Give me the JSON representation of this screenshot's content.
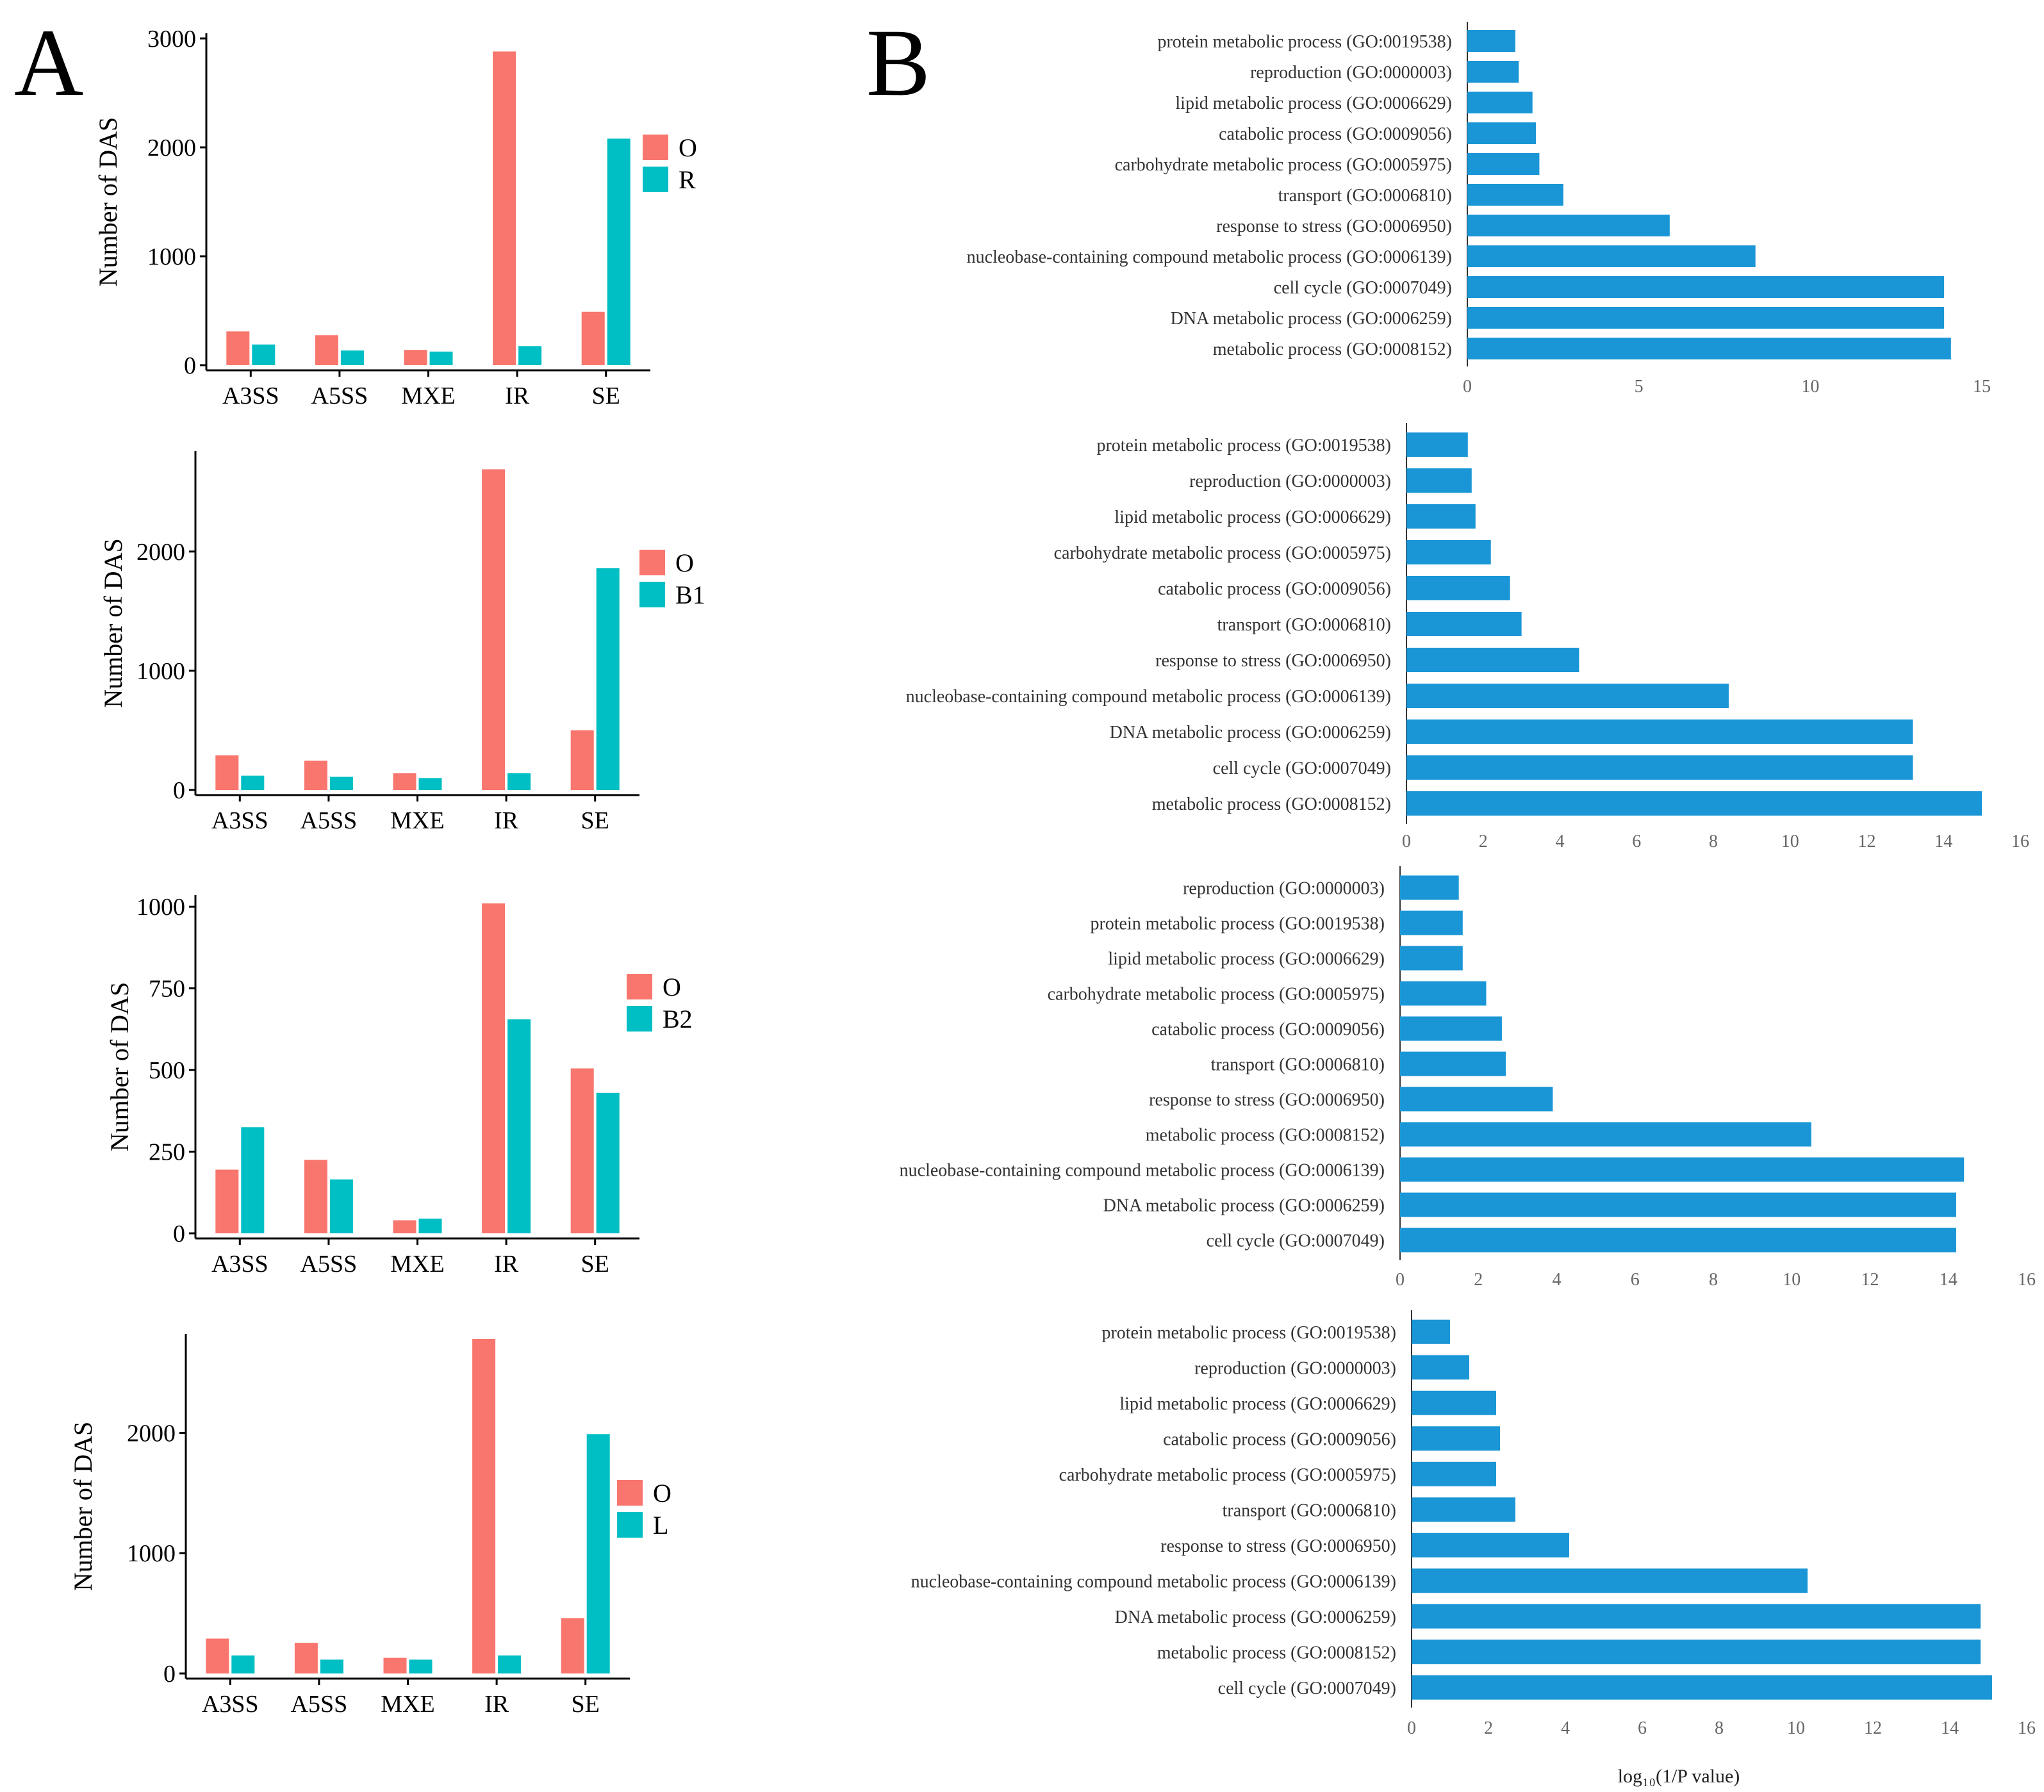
{
  "panel_labels": {
    "a": "A",
    "b": "B"
  },
  "colors": {
    "o": "#f8766d",
    "cmp": "#00bfc4",
    "go": "#1a96d6",
    "axis": "#000000"
  },
  "chart_data": [
    {
      "type": "bar",
      "panel": "A",
      "title": "",
      "xlabel": "",
      "ylabel": "Number of DAS",
      "categories": [
        "A3SS",
        "A5SS",
        "MXE",
        "IR",
        "SE"
      ],
      "series": [
        {
          "name": "O",
          "values": [
            310,
            275,
            140,
            2880,
            490
          ]
        },
        {
          "name": "R",
          "values": [
            190,
            135,
            125,
            175,
            2080
          ]
        }
      ],
      "yticks": [
        "0",
        "1000",
        "2000",
        "3000"
      ],
      "ylim": [
        0,
        3000
      ],
      "legend": "right"
    },
    {
      "type": "bar",
      "panel": "A",
      "title": "",
      "xlabel": "",
      "ylabel": "Number of DAS",
      "categories": [
        "A3SS",
        "A5SS",
        "MXE",
        "IR",
        "SE"
      ],
      "series": [
        {
          "name": "O",
          "values": [
            290,
            245,
            140,
            2690,
            500
          ]
        },
        {
          "name": "B1",
          "values": [
            120,
            110,
            100,
            140,
            1860
          ]
        }
      ],
      "yticks": [
        "0",
        "1000",
        "2000"
      ],
      "ylim": [
        0,
        2800
      ],
      "legend": "right"
    },
    {
      "type": "bar",
      "panel": "A",
      "title": "",
      "xlabel": "",
      "ylabel": "Number of DAS",
      "categories": [
        "A3SS",
        "A5SS",
        "MXE",
        "IR",
        "SE"
      ],
      "series": [
        {
          "name": "O",
          "values": [
            195,
            225,
            40,
            1010,
            505
          ]
        },
        {
          "name": "B2",
          "values": [
            325,
            165,
            45,
            655,
            430
          ]
        }
      ],
      "yticks": [
        "0",
        "250",
        "500",
        "750",
        "1000"
      ],
      "ylim": [
        0,
        1020
      ],
      "legend": "right"
    },
    {
      "type": "bar",
      "panel": "A",
      "title": "",
      "xlabel": "",
      "ylabel": "Number of DAS",
      "categories": [
        "A3SS",
        "A5SS",
        "MXE",
        "IR",
        "SE"
      ],
      "series": [
        {
          "name": "O",
          "values": [
            290,
            255,
            130,
            2780,
            460
          ]
        },
        {
          "name": "L",
          "values": [
            150,
            115,
            115,
            150,
            1990
          ]
        }
      ],
      "yticks": [
        "0",
        "1000",
        "2000"
      ],
      "ylim": [
        0,
        2780
      ],
      "legend": "right"
    },
    {
      "type": "bar",
      "orientation": "horizontal",
      "panel": "B",
      "title": "",
      "xlabel": "",
      "ylabel": "",
      "categories": [
        "protein metabolic process (GO:0019538)",
        "reproduction (GO:0000003)",
        "lipid metabolic process (GO:0006629)",
        "catabolic process (GO:0009056)",
        "carbohydrate metabolic process (GO:0005975)",
        "transport (GO:0006810)",
        "response to stress (GO:0006950)",
        "nucleobase-containing compound metabolic process (GO:0006139)",
        "cell cycle (GO:0007049)",
        "DNA metabolic process (GO:0006259)",
        "metabolic process (GO:0008152)"
      ],
      "values": [
        1.4,
        1.5,
        1.9,
        2.0,
        2.1,
        2.8,
        5.9,
        8.4,
        13.9,
        13.9,
        14.1
      ],
      "xticks": [
        "0",
        "5",
        "10",
        "15"
      ],
      "xlim": [
        0,
        15
      ]
    },
    {
      "type": "bar",
      "orientation": "horizontal",
      "panel": "B",
      "title": "",
      "xlabel": "",
      "ylabel": "",
      "categories": [
        "protein metabolic process (GO:0019538)",
        "reproduction (GO:0000003)",
        "lipid metabolic process (GO:0006629)",
        "carbohydrate metabolic process (GO:0005975)",
        "catabolic process (GO:0009056)",
        "transport (GO:0006810)",
        "response to stress (GO:0006950)",
        "nucleobase-containing compound metabolic process (GO:0006139)",
        "DNA metabolic process (GO:0006259)",
        "cell cycle (GO:0007049)",
        "metabolic process (GO:0008152)"
      ],
      "values": [
        1.6,
        1.7,
        1.8,
        2.2,
        2.7,
        3.0,
        4.5,
        8.4,
        13.2,
        13.2,
        15.0
      ],
      "xticks": [
        "0",
        "2",
        "4",
        "6",
        "8",
        "10",
        "12",
        "14",
        "16"
      ],
      "xlim": [
        0,
        16
      ]
    },
    {
      "type": "bar",
      "orientation": "horizontal",
      "panel": "B",
      "title": "",
      "xlabel": "",
      "ylabel": "",
      "categories": [
        "reproduction (GO:0000003)",
        "protein metabolic process (GO:0019538)",
        "lipid metabolic process (GO:0006629)",
        "carbohydrate metabolic process (GO:0005975)",
        "catabolic process (GO:0009056)",
        "transport (GO:0006810)",
        "response to stress (GO:0006950)",
        "metabolic process (GO:0008152)",
        "nucleobase-containing compound metabolic process (GO:0006139)",
        "DNA metabolic process (GO:0006259)",
        "cell cycle (GO:0007049)"
      ],
      "values": [
        1.5,
        1.6,
        1.6,
        2.2,
        2.6,
        2.7,
        3.9,
        10.5,
        14.4,
        14.2,
        14.2
      ],
      "xticks": [
        "0",
        "2",
        "4",
        "6",
        "8",
        "10",
        "12",
        "14",
        "16"
      ],
      "xlim": [
        0,
        16
      ]
    },
    {
      "type": "bar",
      "orientation": "horizontal",
      "panel": "B",
      "title": "",
      "xlabel": "log₁₀(1/P value)",
      "ylabel": "",
      "categories": [
        "protein metabolic process (GO:0019538)",
        "reproduction (GO:0000003)",
        "lipid metabolic process (GO:0006629)",
        "catabolic process (GO:0009056)",
        "carbohydrate metabolic process (GO:0005975)",
        "transport (GO:0006810)",
        "response to stress (GO:0006950)",
        "nucleobase-containing compound metabolic process (GO:0006139)",
        "DNA metabolic process (GO:0006259)",
        "metabolic process (GO:0008152)",
        "cell cycle (GO:0007049)"
      ],
      "values": [
        1.0,
        1.5,
        2.2,
        2.3,
        2.2,
        2.7,
        4.1,
        10.3,
        14.8,
        14.8,
        15.1
      ],
      "xticks": [
        "0",
        "2",
        "4",
        "6",
        "8",
        "10",
        "12",
        "14",
        "16"
      ],
      "xlim": [
        0,
        16
      ]
    }
  ]
}
